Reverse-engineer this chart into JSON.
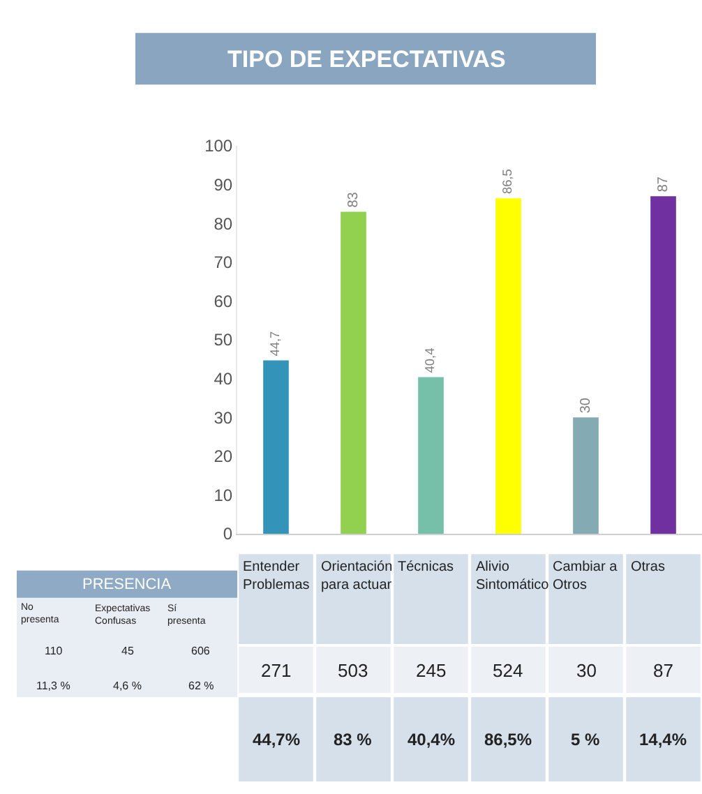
{
  "chart_data": [
    {
      "type": "bar",
      "title": "TIPO DE EXPECTATIVAS",
      "categories": [
        "Entender Problemas",
        "Orientación para actuar",
        "Técnicas",
        "Alivio Sintomático",
        "Cambiar a Otros",
        "Otras"
      ],
      "values": [
        44.7,
        83,
        40.4,
        86.5,
        30,
        87
      ],
      "colors": [
        "#3393b8",
        "#92d050",
        "#76bfa8",
        "#ffff00",
        "#84aab4",
        "#7030a0"
      ],
      "value_labels": [
        "44,7",
        "83",
        "40,4",
        "86,5",
        "30",
        "87"
      ],
      "ylim": [
        0,
        100
      ],
      "yticks": [
        0,
        10,
        20,
        30,
        40,
        50,
        60,
        70,
        80,
        90,
        100
      ],
      "annotations": [
        "271",
        "503",
        "245",
        "524",
        "30",
        "87",
        "44,7%",
        "83 %",
        "40,4%",
        "86,5%",
        "5 %",
        "14,4%"
      ]
    },
    {
      "type": "other",
      "title": "PRESENCIA",
      "categories": [
        "No presenta",
        "Expectativas Confusas",
        "Sí presenta"
      ],
      "annotations": [
        "110",
        "45",
        "606",
        "11,3 %",
        "4,6 %",
        "62 %"
      ]
    }
  ]
}
